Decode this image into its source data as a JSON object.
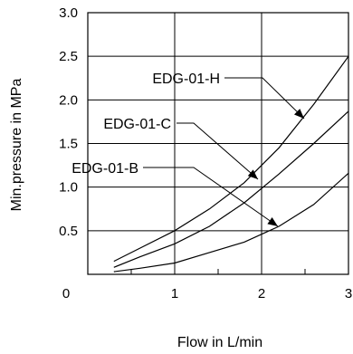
{
  "chart_data": {
    "type": "line",
    "title": "",
    "xlabel": "Flow in L/min",
    "ylabel": "Min.pressure in MPa",
    "xlim": [
      0,
      3
    ],
    "ylim": [
      0,
      3
    ],
    "grid": true,
    "x_ticks": [
      "0",
      "1",
      "2",
      "3"
    ],
    "y_ticks": [
      "0.5",
      "1.0",
      "1.5",
      "2.0",
      "2.5",
      "3.0"
    ],
    "series": [
      {
        "name": "EDG-01-H",
        "x": [
          0.3,
          0.6,
          1.0,
          1.4,
          1.8,
          2.2,
          2.6,
          3.0
        ],
        "y": [
          0.15,
          0.3,
          0.5,
          0.75,
          1.05,
          1.45,
          1.95,
          2.5
        ]
      },
      {
        "name": "EDG-01-C",
        "x": [
          0.3,
          0.6,
          1.0,
          1.4,
          1.8,
          2.2,
          2.6,
          3.0
        ],
        "y": [
          0.08,
          0.2,
          0.35,
          0.55,
          0.82,
          1.15,
          1.5,
          1.87
        ]
      },
      {
        "name": "EDG-01-B",
        "x": [
          0.3,
          0.6,
          1.0,
          1.4,
          1.8,
          2.2,
          2.6,
          3.0
        ],
        "y": [
          0.03,
          0.07,
          0.13,
          0.25,
          0.37,
          0.55,
          0.8,
          1.16
        ]
      }
    ]
  }
}
